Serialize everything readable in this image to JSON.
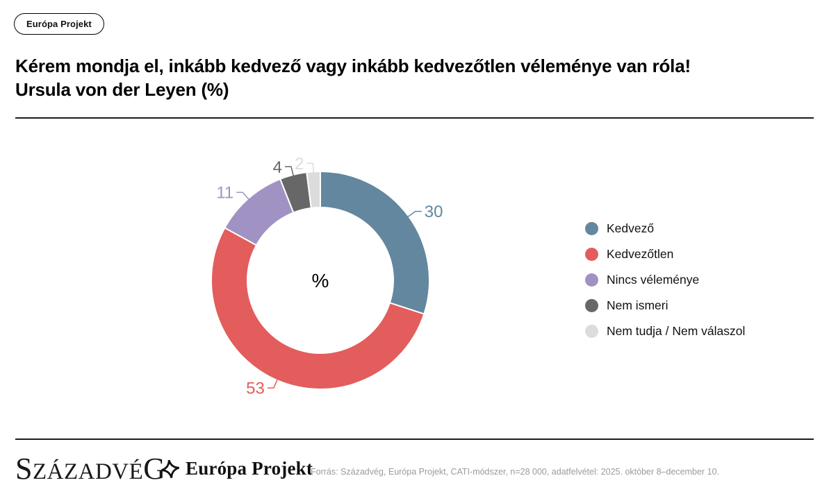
{
  "badge": {
    "label": "Európa Projekt"
  },
  "title": {
    "line1": "Kérem mondja el, inkább kedvező vagy inkább kedvezőtlen véleménye van róla!",
    "line2": "Ursula von der Leyen (%)"
  },
  "chart_data": {
    "type": "pie",
    "subtype": "donut",
    "title": "Kérem mondja el, inkább kedvező vagy inkább kedvezőtlen véleménye van róla! Ursula von der Leyen (%)",
    "categories": [
      "Kedvező",
      "Kedvezőtlen",
      "Nincs véleménye",
      "Nem ismeri",
      "Nem tudja / Nem válaszol"
    ],
    "values": [
      30,
      53,
      11,
      4,
      2
    ],
    "unit": "%",
    "center_label": "%",
    "colors": [
      "#63879e",
      "#e25d5c",
      "#a093c3",
      "#676767",
      "#dcdcdc"
    ],
    "start_angle": "top",
    "direction": "clockwise",
    "legend_position": "right",
    "labels_shown": true
  },
  "footer": {
    "brand": "Századvég",
    "partner": "Európa Projekt",
    "source": "Forrás: Századvég, Európa Projekt, CATI-módszer, n=28 000, adatfelvétel: 2025. október 8–december 10."
  }
}
